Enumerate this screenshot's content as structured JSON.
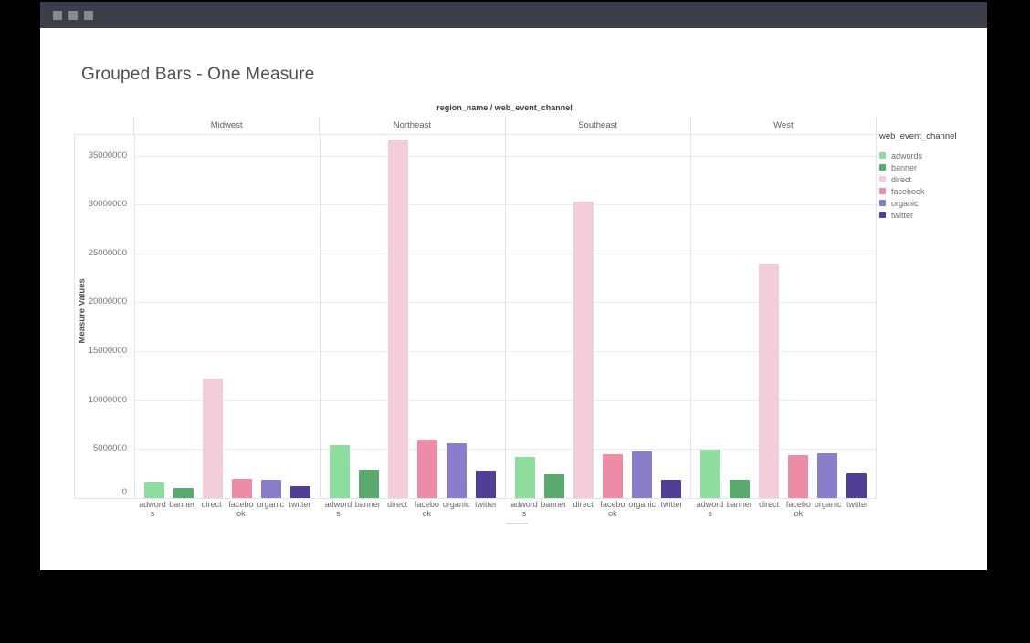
{
  "window": {
    "titlebar_buttons": [
      "window-button-1",
      "window-button-2",
      "window-button-3"
    ]
  },
  "title": "Grouped Bars - One Measure",
  "chart": {
    "facet_label": "region_name / web_event_channel",
    "y_axis": {
      "title": "Measure Values"
    },
    "x_tick_display_labels": [
      "adword\ns",
      "banner",
      "direct",
      "facebo\nok",
      "organic",
      "twitter"
    ],
    "legend": {
      "title": "web_event_channel"
    }
  },
  "chart_data": {
    "type": "bar",
    "title": "Grouped Bars - One Measure",
    "facet_label": "region_name / web_event_channel",
    "facets": [
      "Midwest",
      "Northeast",
      "Southeast",
      "West"
    ],
    "categories": [
      "adwords",
      "banner",
      "direct",
      "facebook",
      "organic",
      "twitter"
    ],
    "series": [
      {
        "name": "Midwest",
        "values": [
          1600000,
          1000000,
          12200000,
          2000000,
          1900000,
          1200000
        ]
      },
      {
        "name": "Northeast",
        "values": [
          5400000,
          2900000,
          36600000,
          6000000,
          5600000,
          2800000
        ]
      },
      {
        "name": "Southeast",
        "values": [
          4200000,
          2400000,
          30300000,
          4500000,
          4800000,
          1900000
        ]
      },
      {
        "name": "West",
        "values": [
          4900000,
          1900000,
          24000000,
          4400000,
          4600000,
          2500000
        ]
      }
    ],
    "colors": {
      "adwords": "#8edd9e",
      "banner": "#5aaa6e",
      "direct": "#f4cdda",
      "facebook": "#ec8ca6",
      "organic": "#8a7ecb",
      "twitter": "#4f3f96"
    },
    "ylabel": "Measure Values",
    "xlabel": "",
    "ylim": [
      0,
      37100000
    ],
    "y_ticks": [
      0,
      5000000,
      10000000,
      15000000,
      20000000,
      25000000,
      30000000,
      35000000
    ],
    "grid": true,
    "legend_position": "right",
    "legend_title": "web_event_channel"
  }
}
